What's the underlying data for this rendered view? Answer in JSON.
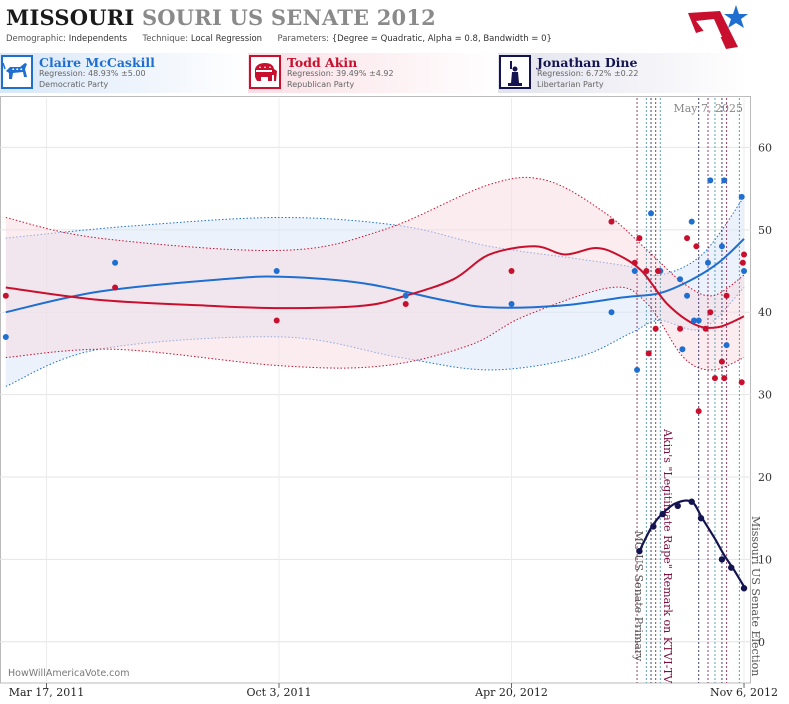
{
  "header": {
    "state": "MISSOURI",
    "subtitle": "SOURI US SENATE 2012",
    "demographic_label": "Demographic:",
    "demographic_value": "Independents",
    "technique_label": "Technique:",
    "technique_value": "Local Regression",
    "parameters_label": "Parameters:",
    "parameters_value": "{Degree = Quadratic, Alpha = 0.8, Bandwidth = 0}"
  },
  "candidates": [
    {
      "name": "Claire McCaskill",
      "regression": "Regression: 48.93% ±5.00",
      "party": "Democratic Party",
      "color": "#1f6fd1",
      "icon": "donkey-icon"
    },
    {
      "name": "Todd Akin",
      "regression": "Regression: 39.49% ±4.92",
      "party": "Republican Party",
      "color": "#c8102e",
      "icon": "elephant-icon"
    },
    {
      "name": "Jonathan Dine",
      "regression": "Regression: 6.72% ±0.22",
      "party": "Libertarian Party",
      "color": "#141450",
      "icon": "liberty-icon"
    }
  ],
  "watermark": "HowWillAmericaVote.com",
  "chart_data": {
    "type": "line",
    "date_stamp": "May 7, 2025",
    "x_ticks": [
      "Mar 17, 2011",
      "Oct 3, 2011",
      "Apr 20, 2012",
      "Nov 6, 2012"
    ],
    "y_ticks": [
      0,
      10,
      20,
      30,
      40,
      50,
      60
    ],
    "xlim": [
      "2011-02-05",
      "2012-11-12"
    ],
    "ylim": [
      -5,
      66
    ],
    "grid": true,
    "colors": {
      "dem": "#1f6fd1",
      "rep": "#c8102e",
      "lib": "#141450",
      "dem_band": "#dbe8f8",
      "rep_band": "#f7dde4",
      "event": "#7a1040"
    },
    "events": [
      {
        "date": "2012-08-07",
        "label": "MO US Senate Primary"
      },
      {
        "date": "2012-08-19",
        "label": "Akin's \"Legitimate Rape\" Remark on KTVI-TV"
      },
      {
        "date": "2012-11-06",
        "label": "Missouri US Senate Election"
      }
    ],
    "series": [
      {
        "name": "Claire McCaskill",
        "trend": [
          {
            "x": "2011-02-10",
            "y": 40.0
          },
          {
            "x": "2011-05-01",
            "y": 42.5
          },
          {
            "x": "2011-08-15",
            "y": 44.0
          },
          {
            "x": "2011-10-05",
            "y": 44.3
          },
          {
            "x": "2011-12-15",
            "y": 43.5
          },
          {
            "x": "2012-02-20",
            "y": 41.5
          },
          {
            "x": "2012-04-01",
            "y": 40.6
          },
          {
            "x": "2012-06-01",
            "y": 40.8
          },
          {
            "x": "2012-07-25",
            "y": 41.8
          },
          {
            "x": "2012-08-25",
            "y": 42.3
          },
          {
            "x": "2012-09-20",
            "y": 43.8
          },
          {
            "x": "2012-10-15",
            "y": 46.0
          },
          {
            "x": "2012-11-06",
            "y": 48.9
          }
        ],
        "upper": [
          {
            "x": "2011-02-10",
            "y": 49.0
          },
          {
            "x": "2011-06-01",
            "y": 50.5
          },
          {
            "x": "2011-10-05",
            "y": 51.5
          },
          {
            "x": "2012-01-15",
            "y": 50.5
          },
          {
            "x": "2012-04-01",
            "y": 48.0
          },
          {
            "x": "2012-06-15",
            "y": 46.5
          },
          {
            "x": "2012-08-01",
            "y": 45.5
          },
          {
            "x": "2012-08-25",
            "y": 44.5
          },
          {
            "x": "2012-10-01",
            "y": 47.0
          },
          {
            "x": "2012-11-06",
            "y": 54.0
          }
        ],
        "lower": [
          {
            "x": "2011-02-10",
            "y": 31.0
          },
          {
            "x": "2011-05-01",
            "y": 35.5
          },
          {
            "x": "2011-10-05",
            "y": 37.0
          },
          {
            "x": "2012-01-15",
            "y": 34.5
          },
          {
            "x": "2012-04-01",
            "y": 33.0
          },
          {
            "x": "2012-06-15",
            "y": 34.5
          },
          {
            "x": "2012-08-01",
            "y": 37.5
          },
          {
            "x": "2012-08-25",
            "y": 39.0
          },
          {
            "x": "2012-10-01",
            "y": 38.0
          },
          {
            "x": "2012-11-06",
            "y": 43.0
          }
        ],
        "points": [
          {
            "x": "2011-02-10",
            "y": 37
          },
          {
            "x": "2011-05-15",
            "y": 46
          },
          {
            "x": "2011-10-01",
            "y": 45
          },
          {
            "x": "2012-01-20",
            "y": 42
          },
          {
            "x": "2012-04-20",
            "y": 41
          },
          {
            "x": "2012-07-15",
            "y": 40
          },
          {
            "x": "2012-08-04",
            "y": 45
          },
          {
            "x": "2012-08-06",
            "y": 33
          },
          {
            "x": "2012-08-18",
            "y": 52
          },
          {
            "x": "2012-08-26",
            "y": 45
          },
          {
            "x": "2012-09-12",
            "y": 44
          },
          {
            "x": "2012-09-14",
            "y": 35.5
          },
          {
            "x": "2012-09-18",
            "y": 42
          },
          {
            "x": "2012-09-22",
            "y": 51
          },
          {
            "x": "2012-09-24",
            "y": 39
          },
          {
            "x": "2012-09-28",
            "y": 39
          },
          {
            "x": "2012-10-06",
            "y": 46
          },
          {
            "x": "2012-10-08",
            "y": 56
          },
          {
            "x": "2012-10-18",
            "y": 48
          },
          {
            "x": "2012-10-20",
            "y": 56
          },
          {
            "x": "2012-10-22",
            "y": 36
          },
          {
            "x": "2012-11-04",
            "y": 54
          },
          {
            "x": "2012-11-06",
            "y": 45
          }
        ]
      },
      {
        "name": "Todd Akin",
        "trend": [
          {
            "x": "2011-02-10",
            "y": 43.0
          },
          {
            "x": "2011-05-01",
            "y": 41.5
          },
          {
            "x": "2011-08-01",
            "y": 40.8
          },
          {
            "x": "2011-10-05",
            "y": 40.5
          },
          {
            "x": "2011-12-15",
            "y": 40.8
          },
          {
            "x": "2012-01-20",
            "y": 42.0
          },
          {
            "x": "2012-03-01",
            "y": 44.0
          },
          {
            "x": "2012-04-01",
            "y": 47.0
          },
          {
            "x": "2012-05-10",
            "y": 48.0
          },
          {
            "x": "2012-06-05",
            "y": 47.0
          },
          {
            "x": "2012-07-01",
            "y": 47.8
          },
          {
            "x": "2012-07-20",
            "y": 47.0
          },
          {
            "x": "2012-08-10",
            "y": 45.0
          },
          {
            "x": "2012-09-01",
            "y": 41.0
          },
          {
            "x": "2012-09-25",
            "y": 38.5
          },
          {
            "x": "2012-10-15",
            "y": 38.2
          },
          {
            "x": "2012-11-06",
            "y": 39.5
          }
        ],
        "upper": [
          {
            "x": "2011-02-10",
            "y": 51.5
          },
          {
            "x": "2011-05-01",
            "y": 49.0
          },
          {
            "x": "2011-10-05",
            "y": 47.5
          },
          {
            "x": "2012-01-01",
            "y": 50.0
          },
          {
            "x": "2012-04-01",
            "y": 55.5
          },
          {
            "x": "2012-05-20",
            "y": 56.0
          },
          {
            "x": "2012-07-10",
            "y": 52.0
          },
          {
            "x": "2012-08-15",
            "y": 47.5
          },
          {
            "x": "2012-09-15",
            "y": 43.5
          },
          {
            "x": "2012-10-10",
            "y": 42.0
          },
          {
            "x": "2012-11-06",
            "y": 44.5
          }
        ],
        "lower": [
          {
            "x": "2011-02-10",
            "y": 34.5
          },
          {
            "x": "2011-05-15",
            "y": 35.5
          },
          {
            "x": "2011-10-05",
            "y": 33.5
          },
          {
            "x": "2012-01-01",
            "y": 33.5
          },
          {
            "x": "2012-03-15",
            "y": 36.0
          },
          {
            "x": "2012-05-01",
            "y": 39.5
          },
          {
            "x": "2012-07-15",
            "y": 43.0
          },
          {
            "x": "2012-08-15",
            "y": 41.0
          },
          {
            "x": "2012-09-15",
            "y": 34.5
          },
          {
            "x": "2012-10-10",
            "y": 33.0
          },
          {
            "x": "2012-11-06",
            "y": 34.5
          }
        ],
        "points": [
          {
            "x": "2011-02-10",
            "y": 42
          },
          {
            "x": "2011-05-15",
            "y": 43
          },
          {
            "x": "2011-10-01",
            "y": 39
          },
          {
            "x": "2012-01-20",
            "y": 41
          },
          {
            "x": "2012-04-20",
            "y": 45
          },
          {
            "x": "2012-07-15",
            "y": 51
          },
          {
            "x": "2012-08-04",
            "y": 46
          },
          {
            "x": "2012-08-08",
            "y": 49
          },
          {
            "x": "2012-08-14",
            "y": 45
          },
          {
            "x": "2012-08-16",
            "y": 35
          },
          {
            "x": "2012-08-22",
            "y": 38
          },
          {
            "x": "2012-08-24",
            "y": 45
          },
          {
            "x": "2012-09-12",
            "y": 38
          },
          {
            "x": "2012-09-18",
            "y": 49
          },
          {
            "x": "2012-09-26",
            "y": 48
          },
          {
            "x": "2012-09-28",
            "y": 28
          },
          {
            "x": "2012-10-04",
            "y": 38
          },
          {
            "x": "2012-10-08",
            "y": 40
          },
          {
            "x": "2012-10-12",
            "y": 32
          },
          {
            "x": "2012-10-18",
            "y": 34
          },
          {
            "x": "2012-10-20",
            "y": 32
          },
          {
            "x": "2012-10-22",
            "y": 42
          },
          {
            "x": "2012-11-04",
            "y": 31.5
          },
          {
            "x": "2012-11-05",
            "y": 46
          },
          {
            "x": "2012-11-06",
            "y": 47
          }
        ]
      },
      {
        "name": "Jonathan Dine",
        "trend": [
          {
            "x": "2012-08-08",
            "y": 11.0
          },
          {
            "x": "2012-08-18",
            "y": 13.8
          },
          {
            "x": "2012-08-26",
            "y": 15.3
          },
          {
            "x": "2012-09-08",
            "y": 16.8
          },
          {
            "x": "2012-09-22",
            "y": 17.0
          },
          {
            "x": "2012-10-01",
            "y": 15.0
          },
          {
            "x": "2012-10-12",
            "y": 12.5
          },
          {
            "x": "2012-10-20",
            "y": 10.5
          },
          {
            "x": "2012-10-28",
            "y": 8.8
          },
          {
            "x": "2012-11-06",
            "y": 6.7
          }
        ],
        "points": [
          {
            "x": "2012-08-08",
            "y": 11
          },
          {
            "x": "2012-08-20",
            "y": 14
          },
          {
            "x": "2012-08-28",
            "y": 15.5
          },
          {
            "x": "2012-09-10",
            "y": 16.5
          },
          {
            "x": "2012-09-22",
            "y": 17
          },
          {
            "x": "2012-09-30",
            "y": 15
          },
          {
            "x": "2012-10-18",
            "y": 10
          },
          {
            "x": "2012-10-26",
            "y": 9
          },
          {
            "x": "2012-11-06",
            "y": 6.5
          }
        ]
      }
    ]
  }
}
